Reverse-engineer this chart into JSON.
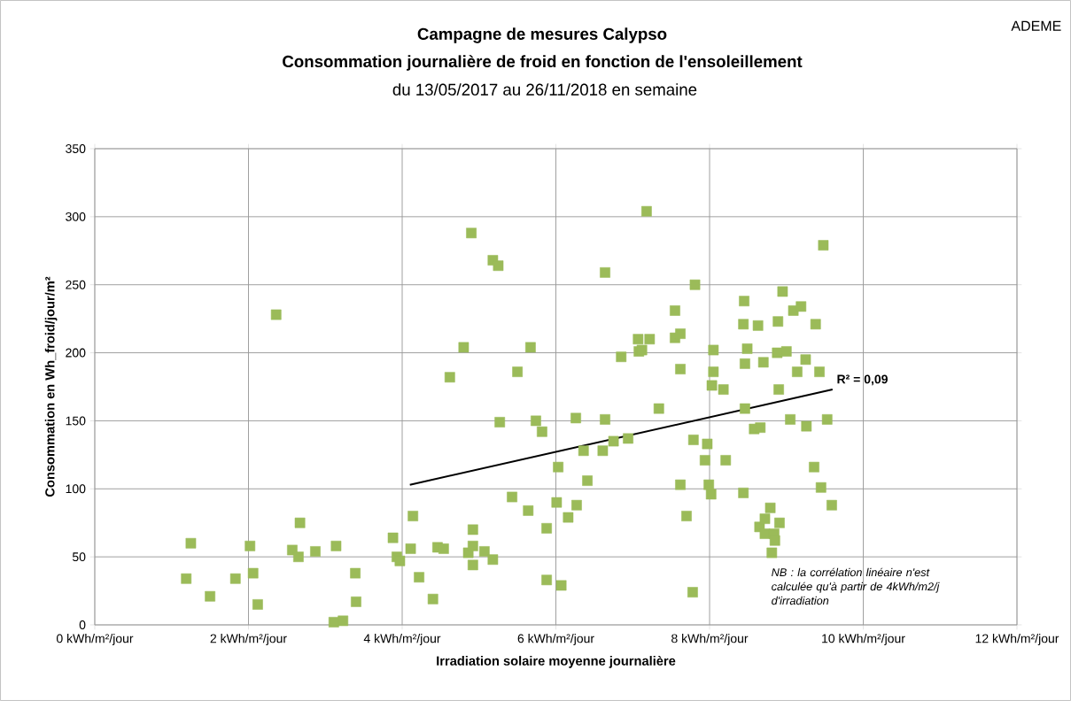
{
  "chart_data": {
    "type": "scatter",
    "title": "Campagne de mesures Calypso",
    "subtitle": "Consommation journalière de froid en fonction de l'ensoleillement",
    "xlabel": "Irradiation solaire moyenne journalière",
    "ylabel": "Consommation en Wh_froid/jour/m²",
    "annotations": [
      "du 13/05/2017 au 26/11/2018 en semaine",
      "ADEME",
      "NB : la corrélation linéaire n'est calculée qu'à partir de 4kWh/m2/j d'irradiation",
      {
        "text": "R² = 0,09",
        "x": 9.6,
        "y": 173
      }
    ],
    "xlim": [
      0,
      12
    ],
    "ylim": [
      0,
      350
    ],
    "xticks": [
      {
        "value": 0,
        "label": "0 kWh/m²/jour"
      },
      {
        "value": 2,
        "label": "2 kWh/m²/jour"
      },
      {
        "value": 4,
        "label": "4 kWh/m²/jour"
      },
      {
        "value": 6,
        "label": "6 kWh/m²/jour"
      },
      {
        "value": 8,
        "label": "8 kWh/m²/jour"
      },
      {
        "value": 10,
        "label": "10 kWh/m²/jour"
      },
      {
        "value": 12,
        "label": "12 kWh/m²/jour"
      }
    ],
    "yticks": [
      0,
      50,
      100,
      150,
      200,
      250,
      300,
      350
    ],
    "grid": true,
    "marker": "square",
    "series": [
      {
        "color": "#9bbb59",
        "x": [
          1.19,
          1.25,
          1.5,
          1.83,
          2.02,
          2.06,
          2.12,
          2.36,
          2.57,
          2.65,
          2.67,
          2.87,
          3.11,
          3.14,
          3.23,
          3.39,
          3.4,
          3.88,
          3.93,
          3.97,
          4.11,
          4.14,
          4.22,
          4.4,
          4.46,
          4.54,
          4.62,
          4.8,
          4.86,
          4.9,
          4.92,
          4.92,
          4.92,
          5.07,
          5.18,
          5.18,
          5.25,
          5.27,
          5.43,
          5.5,
          5.64,
          5.67,
          5.74,
          5.82,
          5.88,
          5.88,
          6.01,
          6.03,
          6.07,
          6.16,
          6.26,
          6.27,
          6.36,
          6.41,
          6.61,
          6.64,
          6.64,
          6.75,
          6.85,
          6.94,
          7.07,
          7.08,
          7.12,
          7.18,
          7.22,
          7.34,
          7.55,
          7.55,
          7.62,
          7.62,
          7.62,
          7.7,
          7.78,
          7.79,
          7.81,
          7.94,
          7.97,
          7.99,
          8.02,
          8.03,
          8.05,
          8.05,
          8.18,
          8.21,
          8.44,
          8.44,
          8.45,
          8.46,
          8.46,
          8.49,
          8.58,
          8.63,
          8.65,
          8.66,
          8.7,
          8.72,
          8.72,
          8.79,
          8.81,
          8.84,
          8.85,
          8.88,
          8.89,
          8.9,
          8.91,
          8.95,
          9.0,
          9.05,
          9.09,
          9.14,
          9.19,
          9.25,
          9.26,
          9.36,
          9.38,
          9.43,
          9.45,
          9.48,
          9.53,
          9.59
        ],
        "values": [
          34,
          60,
          21,
          34,
          58,
          38,
          15,
          228,
          55,
          50,
          75,
          54,
          2,
          58,
          3,
          38,
          17,
          64,
          50,
          47,
          56,
          80,
          35,
          19,
          57,
          56,
          182,
          204,
          53,
          288,
          70,
          58,
          44,
          54,
          268,
          48,
          264,
          149,
          94,
          186,
          84,
          204,
          150,
          142,
          71,
          33,
          90,
          116,
          29,
          79,
          152,
          88,
          128,
          106,
          128,
          151,
          259,
          135,
          197,
          137,
          210,
          201,
          202,
          304,
          210,
          159,
          231,
          211,
          214,
          188,
          103,
          80,
          24,
          136,
          250,
          121,
          133,
          103,
          96,
          176,
          202,
          186,
          173,
          121,
          221,
          97,
          238,
          192,
          159,
          203,
          144,
          220,
          72,
          145,
          193,
          78,
          67,
          86,
          53,
          67,
          62,
          200,
          223,
          173,
          75,
          245,
          201,
          151,
          231,
          186,
          234,
          195,
          146,
          116,
          221,
          186,
          101,
          279,
          151,
          88
        ]
      },
      {
        "type": "line",
        "color": "#000000",
        "marker": "none",
        "x": [
          4.1,
          9.6
        ],
        "values": [
          103,
          173
        ]
      }
    ]
  }
}
